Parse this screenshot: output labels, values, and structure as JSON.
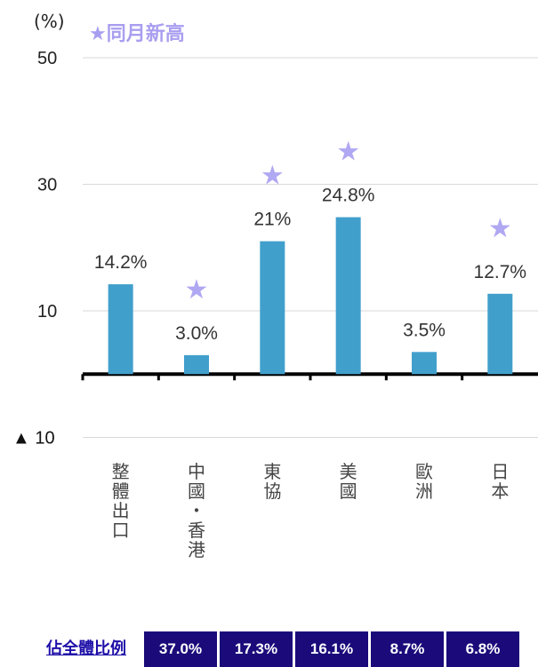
{
  "chart_data": {
    "type": "bar",
    "unit_label": "(%)",
    "legend_label": "★同月新高",
    "categories": [
      "整體出口",
      "中國・香港",
      "東協",
      "美國",
      "歐洲",
      "日本"
    ],
    "category_lines": [
      [
        "整",
        "體",
        "出",
        "口"
      ],
      [
        "中",
        "國",
        "・",
        "香",
        "港"
      ],
      [
        "東",
        "協"
      ],
      [
        "美",
        "國"
      ],
      [
        "歐",
        "洲"
      ],
      [
        "日",
        "本"
      ]
    ],
    "values": [
      14.2,
      3.0,
      21,
      24.8,
      3.5,
      12.7
    ],
    "value_labels": [
      "14.2%",
      "3.0%",
      "21%",
      "24.8%",
      "3.5%",
      "12.7%"
    ],
    "record_high": [
      false,
      true,
      true,
      true,
      false,
      true
    ],
    "ylim": [
      -10,
      50
    ],
    "yticks": [
      {
        "value": 50,
        "label": "50"
      },
      {
        "value": 30,
        "label": "30"
      },
      {
        "value": 10,
        "label": "10"
      },
      {
        "value": -10,
        "label": "▲ 10"
      }
    ],
    "bar_color": "#419fcc",
    "star_color": "#b0a8f2",
    "grid": true
  },
  "share_row": {
    "label": "佔全體比例",
    "values": [
      "37.0%",
      "17.3%",
      "16.1%",
      "8.7%",
      "6.8%"
    ]
  }
}
